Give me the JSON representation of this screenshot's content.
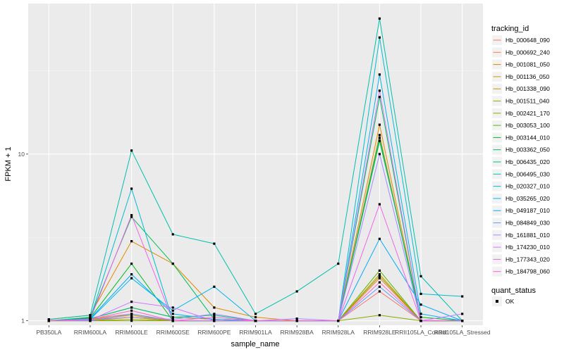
{
  "chart_data": {
    "type": "line",
    "xlabel": "sample_name",
    "ylabel": "FPKM + 1",
    "y_scale": "log10",
    "ylim": [
      0.94,
      80
    ],
    "y_ticks": [
      1,
      10
    ],
    "grid": true,
    "legend_position": "right",
    "categories": [
      "PB350LA",
      "RRIM600LA",
      "RRIM600LE",
      "RRIM600SE",
      "RRIM600PE",
      "RRIM901LA",
      "RRIM928BA",
      "RRIM928LA",
      "RRIM928LE",
      "RRII105LA_Control",
      "RRII105LA_Stressed"
    ],
    "legend": {
      "title": "tracking_id",
      "quant_status_title": "quant_status",
      "quant_status_label": "OK"
    },
    "series": [
      {
        "name": "Hb_000648_090",
        "color": "#F8766D",
        "values": [
          1.0,
          1.03,
          1.1,
          1.0,
          1.0,
          1.0,
          1.0,
          1.0,
          1.5,
          1.0,
          1.0
        ]
      },
      {
        "name": "Hb_000692_240",
        "color": "#EE8044",
        "values": [
          1.0,
          1.02,
          1.05,
          1.0,
          1.0,
          1.0,
          1.0,
          1.0,
          1.8,
          1.0,
          1.0
        ]
      },
      {
        "name": "Hb_001081_050",
        "color": "#E18A00",
        "values": [
          1.02,
          1.08,
          3.0,
          2.2,
          1.2,
          1.05,
          1.0,
          1.0,
          15.0,
          1.0,
          1.0
        ]
      },
      {
        "name": "Hb_001136_050",
        "color": "#D09400",
        "values": [
          1.0,
          1.02,
          1.08,
          1.0,
          1.0,
          1.0,
          1.0,
          1.0,
          13.0,
          1.0,
          1.0
        ]
      },
      {
        "name": "Hb_001338_090",
        "color": "#BB9D00",
        "values": [
          1.0,
          1.0,
          1.05,
          1.0,
          1.0,
          1.0,
          1.0,
          1.0,
          1.9,
          1.0,
          1.0
        ]
      },
      {
        "name": "Hb_001511_040",
        "color": "#A3A500",
        "values": [
          1.0,
          1.0,
          1.02,
          1.0,
          1.0,
          1.0,
          1.0,
          1.0,
          1.85,
          1.0,
          1.0
        ]
      },
      {
        "name": "Hb_002421_170",
        "color": "#85AD00",
        "values": [
          1.0,
          1.0,
          1.0,
          1.0,
          1.0,
          1.0,
          1.0,
          1.0,
          1.08,
          1.0,
          1.0
        ]
      },
      {
        "name": "Hb_003053_100",
        "color": "#5BB300",
        "values": [
          1.0,
          1.03,
          1.2,
          1.05,
          1.02,
          1.0,
          1.0,
          1.0,
          2.0,
          1.0,
          1.0
        ]
      },
      {
        "name": "Hb_003144_010",
        "color": "#00B81F",
        "values": [
          1.0,
          1.04,
          2.2,
          1.0,
          1.0,
          1.0,
          1.0,
          1.0,
          12.0,
          1.05,
          1.0
        ]
      },
      {
        "name": "Hb_003362_050",
        "color": "#00BC59",
        "values": [
          1.0,
          1.05,
          4.2,
          2.2,
          1.02,
          1.0,
          1.0,
          1.0,
          22.0,
          1.0,
          1.0
        ]
      },
      {
        "name": "Hb_006435_020",
        "color": "#00BE86",
        "values": [
          1.0,
          1.03,
          1.2,
          1.05,
          1.08,
          1.0,
          1.0,
          1.0,
          12.5,
          1.0,
          1.0
        ]
      },
      {
        "name": "Hb_006495_030",
        "color": "#00BFAC",
        "values": [
          1.02,
          1.08,
          10.5,
          3.3,
          2.9,
          1.1,
          1.5,
          2.2,
          65.0,
          1.85,
          1.0
        ]
      },
      {
        "name": "Hb_020327_010",
        "color": "#00BCCF",
        "values": [
          1.0,
          1.03,
          6.2,
          1.0,
          1.0,
          1.0,
          1.0,
          1.0,
          50.0,
          1.45,
          1.4
        ]
      },
      {
        "name": "Hb_035265_020",
        "color": "#00B6EE",
        "values": [
          1.0,
          1.02,
          1.8,
          1.15,
          1.6,
          1.0,
          1.0,
          1.0,
          30.0,
          1.1,
          1.0
        ]
      },
      {
        "name": "Hb_049187_010",
        "color": "#00ACFC",
        "values": [
          1.0,
          1.03,
          1.9,
          1.1,
          1.02,
          1.0,
          1.0,
          1.0,
          3.1,
          1.25,
          1.0
        ]
      },
      {
        "name": "Hb_084849_030",
        "color": "#619CFF",
        "values": [
          1.0,
          1.0,
          1.1,
          1.0,
          1.0,
          1.0,
          1.0,
          1.0,
          1.6,
          1.0,
          1.0
        ]
      },
      {
        "name": "Hb_161881_010",
        "color": "#A58AFF",
        "values": [
          1.0,
          1.01,
          1.05,
          1.02,
          1.1,
          1.0,
          1.03,
          1.0,
          10.0,
          1.0,
          1.0
        ]
      },
      {
        "name": "Hb_174230_010",
        "color": "#D277FF",
        "values": [
          1.0,
          1.01,
          1.3,
          1.2,
          1.0,
          1.0,
          1.0,
          1.0,
          24.0,
          1.0,
          1.1
        ]
      },
      {
        "name": "Hb_177343_020",
        "color": "#F064EA",
        "values": [
          1.0,
          1.02,
          4.3,
          1.0,
          1.0,
          1.0,
          1.0,
          1.0,
          5.0,
          1.0,
          1.0
        ]
      },
      {
        "name": "Hb_184798_060",
        "color": "#FF61C3",
        "values": [
          1.0,
          1.02,
          1.15,
          1.0,
          1.05,
          1.0,
          1.0,
          1.0,
          1.7,
          1.0,
          1.0
        ]
      }
    ]
  }
}
